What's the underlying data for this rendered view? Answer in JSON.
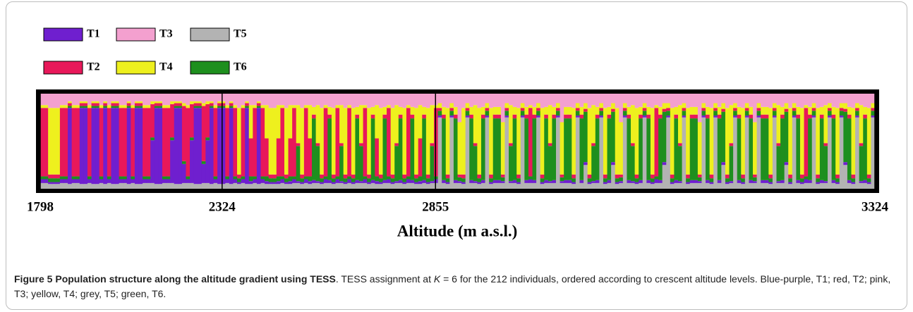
{
  "chart_data": {
    "type": "stacked_bar",
    "x_label": "Altitude (m a.s.l.)",
    "xlim": [
      0,
      212
    ],
    "xticks": [
      {
        "value": 0,
        "label": "1798"
      },
      {
        "value": 46.2,
        "label": "2324"
      },
      {
        "value": 100.4,
        "label": "2855"
      },
      {
        "value": 212,
        "label": "3324"
      }
    ],
    "ylim": [
      0,
      100
    ],
    "series": [
      {
        "name": "T1",
        "color": "#6f1fcf",
        "values": [
          4,
          4,
          2,
          2,
          2,
          4,
          4,
          80,
          4,
          4,
          80,
          80,
          4,
          80,
          80,
          4,
          80,
          4,
          80,
          80,
          4,
          4,
          80,
          4,
          80,
          80,
          4,
          4,
          45,
          80,
          80,
          4,
          4,
          45,
          80,
          80,
          20,
          4,
          45,
          80,
          80,
          20,
          45,
          80,
          4,
          80,
          80,
          4,
          80,
          4,
          2,
          4,
          80,
          3,
          4,
          80,
          4,
          3,
          2,
          2,
          3,
          4,
          2,
          3,
          4,
          2,
          2,
          4,
          3,
          3,
          2,
          2,
          4,
          3,
          2,
          4,
          2,
          2,
          4,
          2,
          3,
          2,
          4,
          2,
          3,
          3,
          2,
          3,
          4,
          2,
          2,
          3,
          2,
          4,
          3,
          2,
          3,
          3,
          2,
          2,
          4,
          2,
          3,
          2,
          2,
          3,
          2,
          2,
          2,
          3,
          2,
          2,
          3,
          2,
          2,
          3,
          3,
          2,
          2,
          2,
          3,
          2,
          2,
          3,
          4,
          3,
          2,
          2,
          3,
          2,
          3,
          2,
          2,
          3,
          3,
          2,
          2,
          3,
          3,
          2,
          2,
          3,
          2,
          2,
          3,
          3,
          2,
          2,
          2,
          3,
          2,
          2,
          3,
          2,
          3,
          2,
          4,
          3,
          3,
          2,
          2,
          3,
          2,
          2,
          2,
          3,
          3,
          2,
          2,
          3,
          2,
          2,
          3,
          3,
          2,
          2,
          2,
          3,
          2,
          2,
          3,
          2,
          2,
          3,
          3,
          2,
          2,
          2,
          3,
          3,
          2,
          2,
          3,
          2,
          4,
          3,
          2,
          2,
          3,
          2,
          2,
          3,
          2,
          2,
          3,
          3,
          2,
          2,
          2,
          3,
          2,
          2
        ]
      },
      {
        "name": "T2",
        "color": "#e8185a",
        "values": [
          72,
          72,
          4,
          4,
          4,
          72,
          72,
          3,
          72,
          72,
          3,
          3,
          72,
          3,
          3,
          72,
          3,
          72,
          3,
          3,
          72,
          72,
          3,
          72,
          3,
          3,
          72,
          72,
          35,
          3,
          3,
          72,
          72,
          35,
          3,
          3,
          58,
          72,
          35,
          3,
          3,
          58,
          35,
          3,
          72,
          3,
          3,
          72,
          3,
          72,
          4,
          72,
          3,
          40,
          72,
          3,
          72,
          40,
          4,
          4,
          40,
          72,
          4,
          40,
          72,
          3,
          4,
          72,
          40,
          4,
          3,
          4,
          72,
          4,
          4,
          72,
          3,
          4,
          72,
          4,
          4,
          3,
          72,
          4,
          4,
          40,
          4,
          4,
          72,
          4,
          3,
          4,
          4,
          72,
          4,
          4,
          40,
          4,
          4,
          3,
          72,
          3,
          4,
          4,
          3,
          4,
          3,
          4,
          3,
          4,
          3,
          4,
          4,
          3,
          4,
          4,
          4,
          3,
          3,
          3,
          4,
          4,
          3,
          4,
          72,
          4,
          3,
          4,
          4,
          3,
          4,
          3,
          3,
          4,
          4,
          4,
          3,
          4,
          3,
          4,
          3,
          4,
          3,
          4,
          4,
          3,
          4,
          3,
          3,
          4,
          3,
          4,
          4,
          3,
          4,
          4,
          72,
          4,
          3,
          3,
          4,
          4,
          3,
          3,
          4,
          4,
          4,
          3,
          3,
          4,
          4,
          3,
          4,
          3,
          4,
          3,
          3,
          4,
          4,
          3,
          4,
          3,
          3,
          4,
          4,
          4,
          3,
          3,
          4,
          3,
          4,
          3,
          4,
          4,
          72,
          4,
          3,
          4,
          4,
          3,
          3,
          4,
          4,
          3,
          3,
          4,
          4,
          3,
          3,
          4,
          4,
          3
        ]
      },
      {
        "name": "T3",
        "color": "#f3a0cf",
        "values": [
          12,
          12,
          15,
          15,
          15,
          12,
          12,
          8,
          12,
          12,
          8,
          8,
          12,
          8,
          8,
          12,
          8,
          12,
          8,
          8,
          12,
          12,
          8,
          12,
          8,
          8,
          12,
          12,
          8,
          8,
          8,
          12,
          12,
          8,
          8,
          8,
          10,
          12,
          8,
          8,
          8,
          10,
          8,
          8,
          12,
          8,
          8,
          12,
          8,
          12,
          15,
          12,
          8,
          12,
          12,
          8,
          12,
          12,
          15,
          15,
          12,
          12,
          15,
          12,
          12,
          12,
          15,
          12,
          12,
          14,
          12,
          15,
          12,
          14,
          15,
          12,
          12,
          15,
          12,
          15,
          14,
          12,
          12,
          15,
          14,
          12,
          15,
          14,
          12,
          15,
          12,
          14,
          15,
          12,
          14,
          15,
          12,
          14,
          15,
          12,
          12,
          10,
          14,
          15,
          10,
          14,
          30,
          15,
          10,
          14,
          12,
          15,
          14,
          10,
          15,
          14,
          14,
          30,
          10,
          12,
          14,
          15,
          10,
          14,
          12,
          14,
          10,
          15,
          14,
          12,
          14,
          10,
          30,
          14,
          14,
          15,
          10,
          14,
          10,
          15,
          12,
          14,
          10,
          15,
          14,
          10,
          15,
          30,
          10,
          14,
          12,
          15,
          14,
          10,
          14,
          15,
          12,
          14,
          10,
          10,
          15,
          14,
          12,
          10,
          15,
          14,
          14,
          30,
          10,
          14,
          15,
          10,
          14,
          10,
          15,
          12,
          10,
          14,
          15,
          10,
          14,
          30,
          10,
          14,
          14,
          15,
          10,
          12,
          14,
          10,
          15,
          10,
          14,
          15,
          12,
          14,
          10,
          15,
          14,
          12,
          10,
          14,
          15,
          10,
          10,
          14,
          15,
          10,
          12,
          14,
          15,
          10
        ]
      },
      {
        "name": "T4",
        "color": "#eef01e",
        "values": [
          3,
          3,
          70,
          70,
          70,
          3,
          3,
          2,
          3,
          3,
          2,
          2,
          3,
          2,
          2,
          3,
          2,
          3,
          2,
          2,
          3,
          3,
          2,
          3,
          2,
          2,
          3,
          3,
          3,
          2,
          2,
          3,
          3,
          3,
          2,
          2,
          3,
          3,
          3,
          2,
          2,
          3,
          3,
          2,
          3,
          2,
          2,
          3,
          2,
          3,
          70,
          3,
          2,
          35,
          3,
          2,
          3,
          35,
          70,
          70,
          35,
          3,
          70,
          35,
          3,
          40,
          70,
          3,
          35,
          8,
          40,
          70,
          3,
          8,
          70,
          3,
          40,
          70,
          3,
          70,
          8,
          40,
          3,
          70,
          8,
          35,
          70,
          8,
          3,
          70,
          40,
          8,
          70,
          3,
          8,
          70,
          35,
          8,
          70,
          40,
          3,
          5,
          8,
          70,
          5,
          8,
          55,
          70,
          5,
          8,
          40,
          70,
          8,
          5,
          70,
          8,
          8,
          55,
          5,
          40,
          8,
          70,
          5,
          8,
          3,
          8,
          5,
          70,
          8,
          40,
          8,
          5,
          55,
          8,
          8,
          70,
          5,
          8,
          6,
          70,
          40,
          8,
          5,
          70,
          8,
          6,
          70,
          55,
          5,
          8,
          40,
          70,
          8,
          5,
          8,
          70,
          3,
          8,
          6,
          5,
          70,
          8,
          40,
          5,
          70,
          8,
          8,
          55,
          5,
          8,
          70,
          5,
          8,
          6,
          70,
          40,
          5,
          8,
          70,
          5,
          8,
          55,
          5,
          8,
          8,
          70,
          5,
          40,
          8,
          6,
          70,
          5,
          8,
          70,
          3,
          8,
          5,
          70,
          8,
          40,
          5,
          8,
          70,
          5,
          6,
          8,
          70,
          5,
          40,
          8,
          70,
          5
        ]
      },
      {
        "name": "T5",
        "color": "#b3b3b3",
        "values": [
          6,
          6,
          5,
          5,
          5,
          6,
          6,
          5,
          6,
          6,
          5,
          5,
          6,
          5,
          5,
          6,
          5,
          6,
          5,
          5,
          6,
          6,
          5,
          6,
          5,
          5,
          6,
          6,
          6,
          5,
          5,
          6,
          6,
          6,
          5,
          5,
          6,
          6,
          6,
          5,
          5,
          6,
          6,
          5,
          6,
          5,
          5,
          6,
          5,
          6,
          5,
          6,
          5,
          5,
          6,
          5,
          6,
          5,
          5,
          5,
          5,
          6,
          5,
          5,
          6,
          6,
          5,
          6,
          5,
          6,
          6,
          5,
          6,
          6,
          5,
          6,
          6,
          5,
          6,
          5,
          6,
          6,
          6,
          5,
          6,
          5,
          5,
          6,
          6,
          5,
          6,
          6,
          5,
          6,
          6,
          5,
          5,
          6,
          5,
          6,
          6,
          75,
          6,
          5,
          75,
          6,
          6,
          5,
          75,
          6,
          6,
          5,
          6,
          75,
          5,
          6,
          6,
          6,
          75,
          6,
          6,
          5,
          75,
          6,
          6,
          6,
          75,
          5,
          6,
          6,
          6,
          75,
          6,
          6,
          6,
          5,
          75,
          6,
          25,
          5,
          6,
          6,
          75,
          5,
          6,
          25,
          5,
          6,
          75,
          6,
          6,
          5,
          6,
          75,
          6,
          5,
          6,
          6,
          25,
          75,
          5,
          6,
          6,
          75,
          5,
          6,
          6,
          6,
          75,
          6,
          5,
          75,
          6,
          25,
          5,
          6,
          75,
          6,
          5,
          75,
          6,
          6,
          75,
          6,
          6,
          5,
          75,
          6,
          6,
          25,
          5,
          75,
          6,
          5,
          6,
          6,
          75,
          5,
          6,
          6,
          75,
          6,
          5,
          75,
          25,
          6,
          5,
          75,
          6,
          6,
          5,
          75
        ]
      },
      {
        "name": "T6",
        "color": "#1e8f1e",
        "values": [
          3,
          3,
          4,
          4,
          4,
          3,
          3,
          2,
          3,
          3,
          2,
          2,
          3,
          2,
          2,
          3,
          2,
          3,
          2,
          2,
          3,
          3,
          2,
          3,
          2,
          2,
          3,
          3,
          3,
          2,
          2,
          3,
          3,
          3,
          2,
          2,
          3,
          3,
          3,
          2,
          2,
          3,
          3,
          2,
          3,
          2,
          2,
          3,
          2,
          3,
          4,
          3,
          2,
          5,
          3,
          2,
          3,
          5,
          4,
          4,
          5,
          3,
          4,
          5,
          3,
          37,
          4,
          3,
          5,
          65,
          37,
          4,
          3,
          65,
          4,
          3,
          37,
          4,
          3,
          4,
          65,
          37,
          3,
          4,
          65,
          5,
          4,
          65,
          3,
          4,
          37,
          65,
          4,
          3,
          65,
          4,
          5,
          65,
          4,
          37,
          3,
          5,
          65,
          4,
          5,
          65,
          4,
          4,
          5,
          65,
          37,
          4,
          65,
          5,
          4,
          65,
          65,
          4,
          5,
          37,
          65,
          4,
          5,
          65,
          3,
          65,
          5,
          4,
          65,
          37,
          65,
          5,
          4,
          65,
          65,
          4,
          5,
          65,
          53,
          4,
          37,
          65,
          5,
          4,
          65,
          53,
          4,
          4,
          5,
          65,
          37,
          4,
          65,
          5,
          65,
          4,
          3,
          65,
          53,
          5,
          4,
          65,
          37,
          5,
          4,
          65,
          65,
          4,
          5,
          65,
          4,
          5,
          65,
          53,
          4,
          37,
          5,
          65,
          4,
          5,
          65,
          4,
          5,
          65,
          65,
          4,
          5,
          37,
          65,
          53,
          4,
          5,
          65,
          4,
          3,
          65,
          5,
          4,
          65,
          37,
          5,
          65,
          4,
          5,
          53,
          65,
          4,
          5,
          37,
          65,
          4,
          5
        ]
      }
    ]
  },
  "caption": {
    "label": "Figure 5",
    "title": "Population structure along the altitude gradient using TESS",
    "text1": ". TESS assignment at ",
    "italic": "K",
    "text2": " = 6 for the 212 individuals, ordered according to crescent altitude levels. Blue-purple, T1; red, T2; pink, T3; yellow, T4; grey, T5; green, T6."
  }
}
